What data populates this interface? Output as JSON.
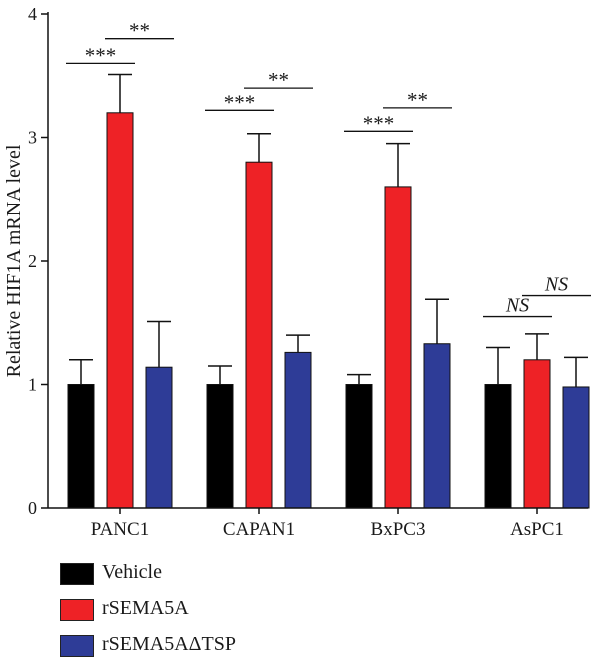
{
  "chart_data": {
    "type": "bar",
    "title": "",
    "xlabel": "",
    "ylabel": "Relative HIF1A mRNA level",
    "ylim": [
      0,
      4
    ],
    "yticks": [
      "0",
      "1",
      "2",
      "3",
      "4"
    ],
    "grid": false,
    "legend_position": "bottom-left",
    "categories": [
      "PANC1",
      "CAPAN1",
      "BxPC3",
      "AsPC1"
    ],
    "series": [
      {
        "name": "Vehicle",
        "color": "#000000",
        "values": [
          1.0,
          1.0,
          1.0,
          1.0
        ],
        "errors": [
          0.2,
          0.15,
          0.08,
          0.3
        ]
      },
      {
        "name": "rSEMA5A",
        "color": "#ee2226",
        "values": [
          3.2,
          2.8,
          2.6,
          1.2
        ],
        "errors": [
          0.31,
          0.23,
          0.35,
          0.21
        ]
      },
      {
        "name": "rSEMA5AΔTSP",
        "color": "#2e3c97",
        "values": [
          1.14,
          1.26,
          1.33,
          0.98
        ],
        "errors": [
          0.37,
          0.14,
          0.36,
          0.24
        ]
      }
    ],
    "significance": [
      {
        "category": 0,
        "from": 0,
        "to": 1,
        "label": "***",
        "y": 3.6,
        "italic": false
      },
      {
        "category": 0,
        "from": 1,
        "to": 2,
        "label": "**",
        "y": 3.8,
        "italic": false
      },
      {
        "category": 1,
        "from": 0,
        "to": 1,
        "label": "***",
        "y": 3.22,
        "italic": false
      },
      {
        "category": 1,
        "from": 1,
        "to": 2,
        "label": "**",
        "y": 3.4,
        "italic": false
      },
      {
        "category": 2,
        "from": 0,
        "to": 1,
        "label": "***",
        "y": 3.05,
        "italic": false
      },
      {
        "category": 2,
        "from": 1,
        "to": 2,
        "label": "**",
        "y": 3.24,
        "italic": false
      },
      {
        "category": 3,
        "from": 0,
        "to": 1,
        "label": "NS",
        "y": 1.55,
        "italic": true
      },
      {
        "category": 3,
        "from": 1,
        "to": 2,
        "label": "NS",
        "y": 1.72,
        "italic": true
      }
    ]
  }
}
